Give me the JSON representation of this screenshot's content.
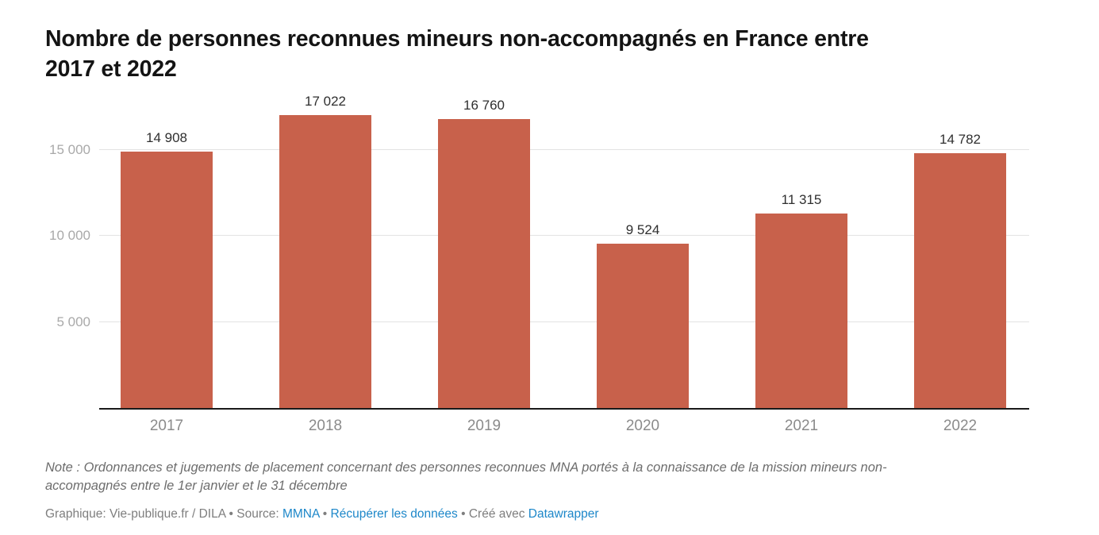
{
  "title": {
    "line1": "Nombre de personnes reconnues mineurs non-accompagnés en France entre",
    "line2": "2017 et 2022"
  },
  "chart_data": {
    "type": "bar",
    "title": "Nombre de personnes reconnues mineurs non-accompagnés en France entre 2017 et 2022",
    "categories": [
      "2017",
      "2018",
      "2019",
      "2020",
      "2021",
      "2022"
    ],
    "values": [
      14908,
      17022,
      16760,
      9524,
      11315,
      14782
    ],
    "value_labels": [
      "14 908",
      "17 022",
      "16 760",
      "9 524",
      "11 315",
      "14 782"
    ],
    "yticks": [
      5000,
      10000,
      15000
    ],
    "ytick_labels": [
      "5 000",
      "10 000",
      "15 000"
    ],
    "ylim": [
      0,
      17700
    ],
    "xlabel": "",
    "ylabel": "",
    "grid": true,
    "legend": "none",
    "bar_color": "#c8614b"
  },
  "footer": {
    "note_line1": "Note : Ordonnances et jugements de placement concernant des personnes reconnues MNA portés à la connaissance de la mission mineurs non-",
    "note_line2": "accompagnés entre le 1er janvier et le 31 décembre",
    "byline": {
      "graphique": "Graphique: Vie-publique.fr / DILA",
      "sep1": " • ",
      "source_label": "Source: ",
      "source_link": "MMNA",
      "sep2": " • ",
      "data_link": "Récupérer les données",
      "sep3": " • ",
      "created_label": "Créé avec ",
      "tool_link": "Datawrapper"
    }
  },
  "colors": {
    "bar": "#c8614b",
    "axis_line": "#1a1a1a",
    "gridline": "#e3e3e3",
    "link_blue": "#1d87c9"
  }
}
